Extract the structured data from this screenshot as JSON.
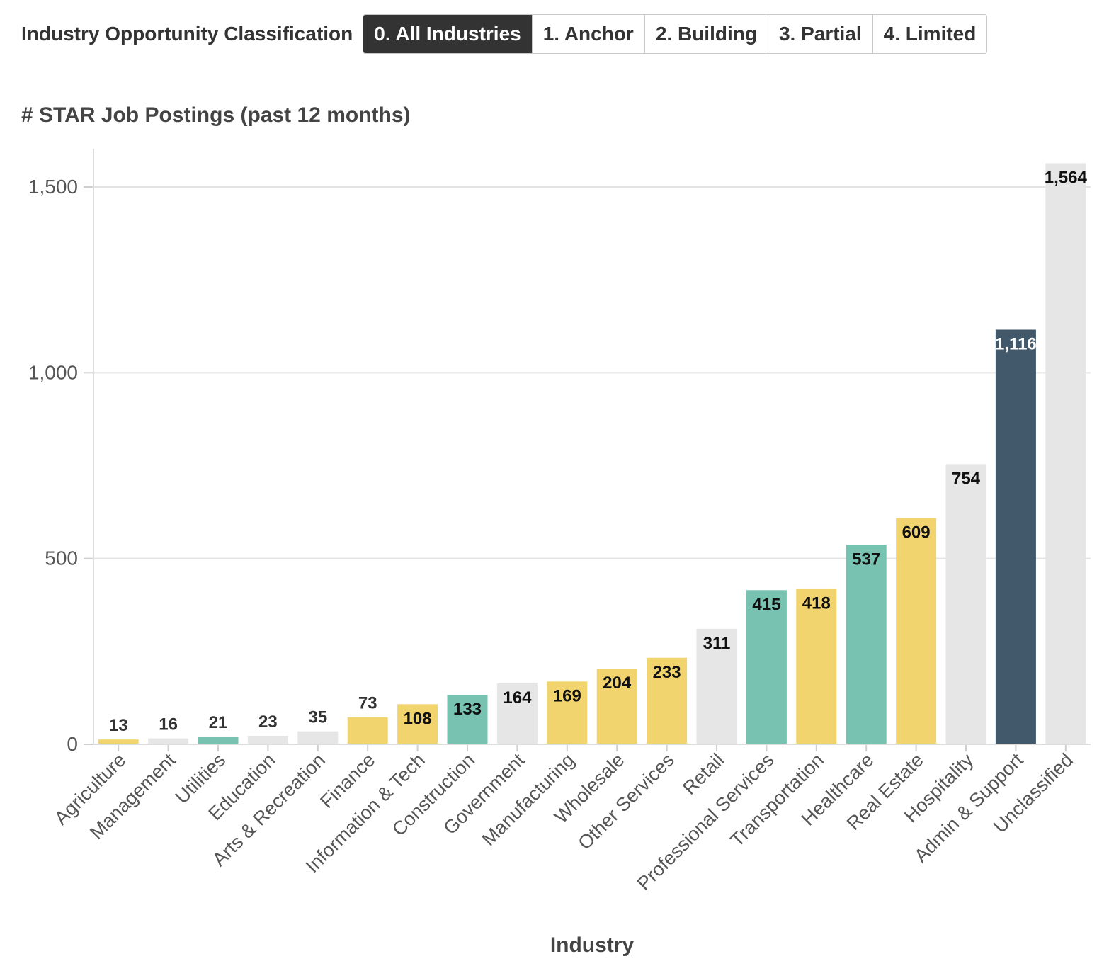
{
  "toolbar": {
    "label": "Industry Opportunity Classification",
    "buttons": [
      "0. All Industries",
      "1. Anchor",
      "2. Building",
      "3. Partial",
      "4. Limited"
    ],
    "active_index": 0
  },
  "colors": {
    "anchor": "#41596a",
    "building": "#77c2b1",
    "partial": "#f2d46e",
    "limited": "#e6e6e6",
    "active_button": "#333333"
  },
  "chart_data": {
    "type": "bar",
    "title": "# STAR Job Postings (past 12 months)",
    "xlabel": "Industry",
    "ylabel": "",
    "ylim": [
      0,
      1600
    ],
    "yticks": [
      0,
      500,
      1000,
      1500
    ],
    "ytick_labels": [
      "0",
      "500",
      "1,000",
      "1,500"
    ],
    "grid": true,
    "categories": [
      "Agriculture",
      "Management",
      "Utilities",
      "Education",
      "Arts & Recreation",
      "Finance",
      "Information & Tech",
      "Construction",
      "Government",
      "Manufacturing",
      "Wholesale",
      "Other Services",
      "Retail",
      "Professional Services",
      "Transportation",
      "Healthcare",
      "Real Estate",
      "Hospitality",
      "Admin & Support",
      "Unclassified"
    ],
    "values": [
      13,
      16,
      21,
      23,
      35,
      73,
      108,
      133,
      164,
      169,
      204,
      233,
      311,
      415,
      418,
      537,
      609,
      754,
      1116,
      1564
    ],
    "value_labels": [
      "13",
      "16",
      "21",
      "23",
      "35",
      "73",
      "108",
      "133",
      "164",
      "169",
      "204",
      "233",
      "311",
      "415",
      "418",
      "537",
      "609",
      "754",
      "1,116",
      "1,564"
    ],
    "classes": [
      "partial",
      "limited",
      "building",
      "limited",
      "limited",
      "partial",
      "partial",
      "building",
      "limited",
      "partial",
      "partial",
      "partial",
      "limited",
      "building",
      "partial",
      "building",
      "partial",
      "limited",
      "anchor",
      "limited"
    ]
  }
}
